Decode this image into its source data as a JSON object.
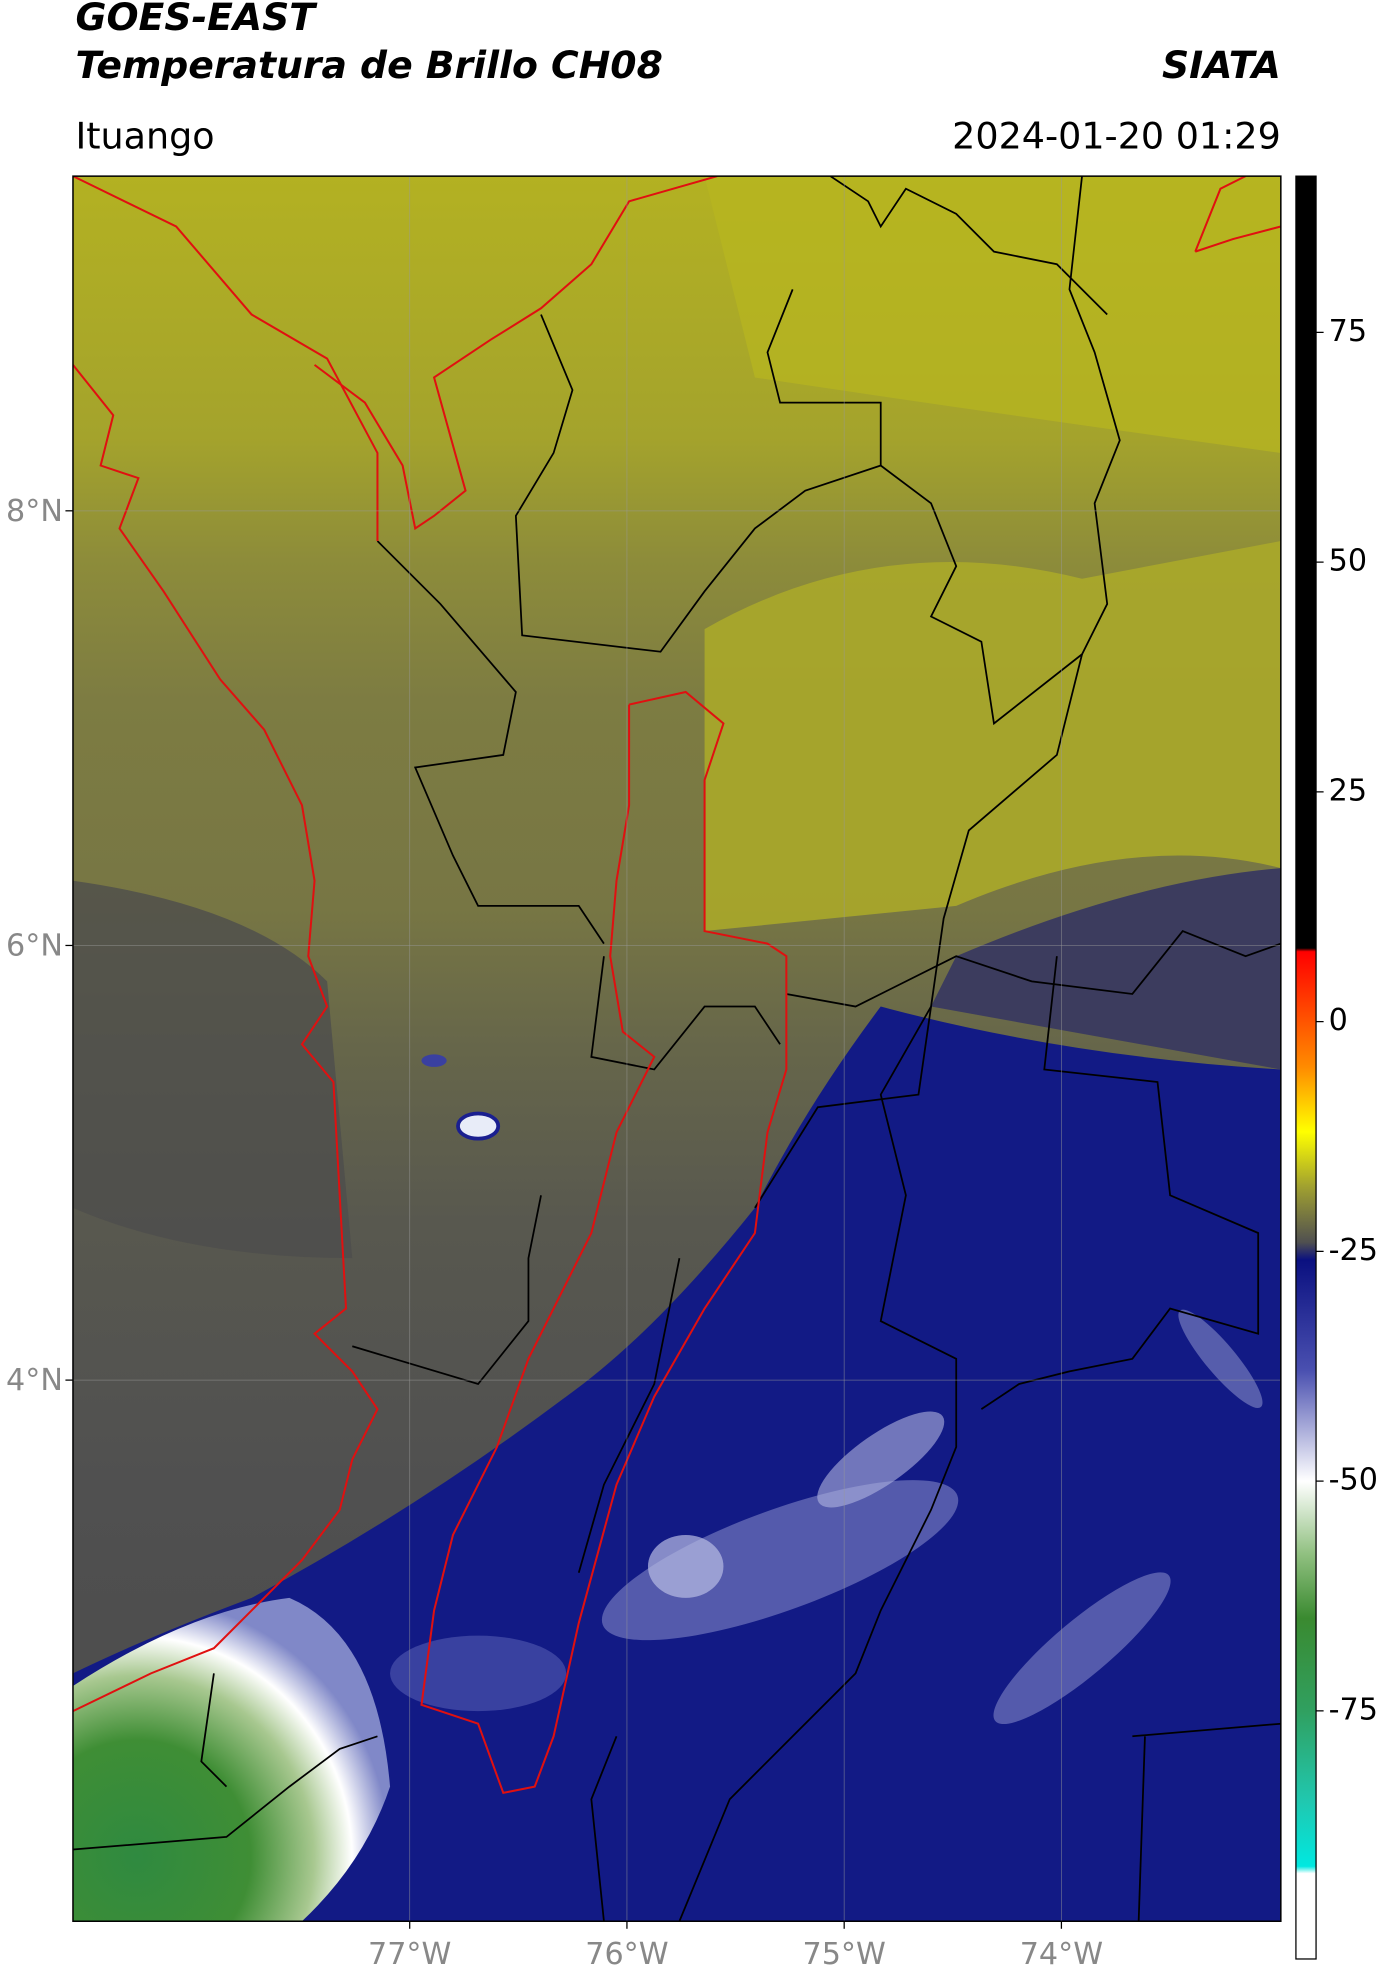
{
  "header": {
    "title": "GOES-EAST",
    "subtitle": "Temperatura de Brillo CH08",
    "source": "SIATA",
    "location": "Ituango",
    "datetime": "2024-01-20 01:29"
  },
  "map": {
    "lon_range": [
      -78.55,
      -72.99
    ],
    "lat_range": [
      1.51,
      9.54
    ],
    "lat_ticks": [
      {
        "value": 8,
        "label": "8°N"
      },
      {
        "value": 6,
        "label": "6°N"
      },
      {
        "value": 4,
        "label": "4°N"
      }
    ],
    "lon_ticks": [
      {
        "value": -77,
        "label": "77°W"
      },
      {
        "value": -76,
        "label": "76°W"
      },
      {
        "value": -75,
        "label": "75°W"
      },
      {
        "value": -74,
        "label": "74°W"
      }
    ]
  },
  "colorbar": {
    "range": [
      -102,
      92
    ],
    "ticks": [
      -75,
      -50,
      -25,
      0,
      25,
      50,
      75
    ]
  }
}
